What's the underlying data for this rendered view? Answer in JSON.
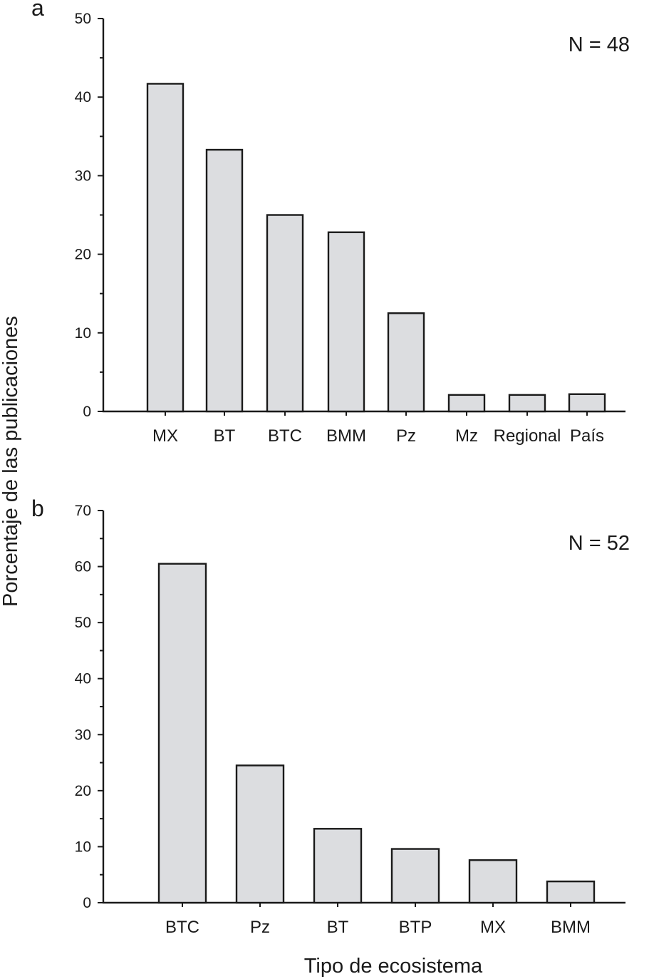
{
  "colors": {
    "bar_fill": "#dcdde0",
    "ink": "#1a1a1a"
  },
  "chart_data": [
    {
      "type": "bar",
      "panel_label": "a",
      "annotation": "N = 48",
      "categories": [
        "MX",
        "BT",
        "BTC",
        "BMM",
        "Pz",
        "Mz",
        "Regional",
        "País"
      ],
      "values": [
        41.7,
        33.3,
        25.0,
        22.8,
        12.5,
        2.1,
        2.1,
        2.2
      ],
      "ylim": [
        0,
        50
      ],
      "yticks": [
        "0",
        "10",
        "20",
        "30",
        "40",
        "50"
      ],
      "minor_tick_step": 5,
      "ylabel": "Porcentaje de las publicaciones",
      "xlabel": ""
    },
    {
      "type": "bar",
      "panel_label": "b",
      "annotation": "N = 52",
      "categories": [
        "BTC",
        "Pz",
        "BT",
        "BTP",
        "MX",
        "BMM"
      ],
      "values": [
        60.5,
        24.5,
        13.2,
        9.6,
        7.6,
        3.8
      ],
      "ylim": [
        0,
        70
      ],
      "yticks": [
        "0",
        "10",
        "20",
        "30",
        "40",
        "50",
        "60",
        "70"
      ],
      "minor_tick_step": 5,
      "ylabel": "Porcentaje de las publicaciones",
      "xlabel": "Tipo de ecosistema"
    }
  ]
}
